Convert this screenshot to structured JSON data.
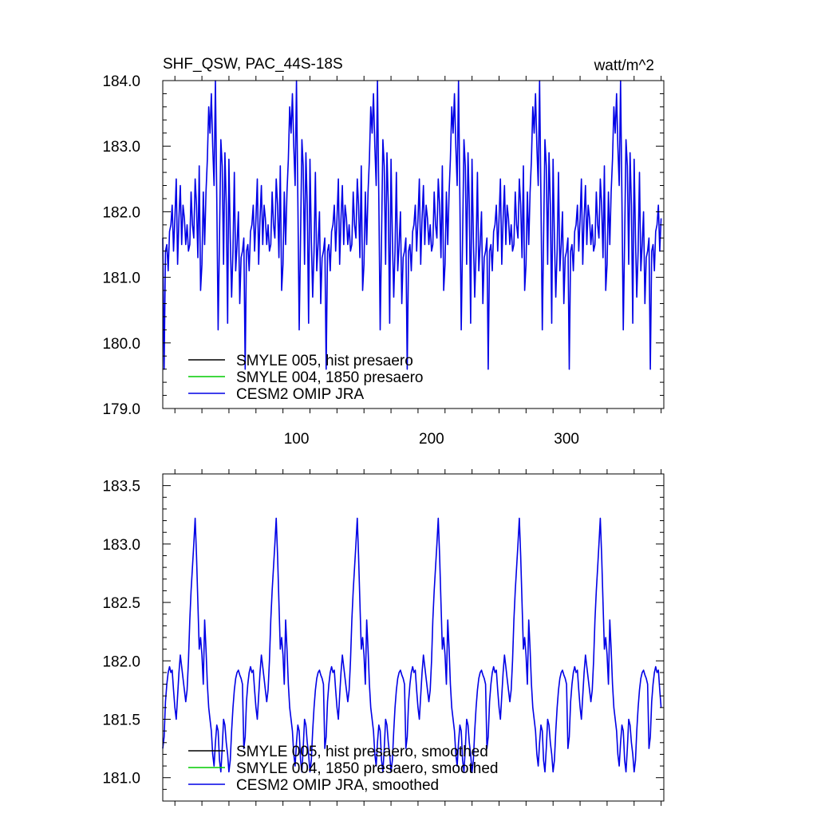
{
  "chart_data": [
    {
      "type": "line",
      "title": "SHF_QSW, PAC_44S-18S",
      "units_label": "watt/m^2",
      "xlim": [
        1,
        372
      ],
      "ylim": [
        179.0,
        184.0
      ],
      "x_ticks": [
        100,
        200,
        300
      ],
      "x_tick_labels": [
        "100",
        "200",
        "300"
      ],
      "y_ticks": [
        179.0,
        180.0,
        181.0,
        182.0,
        183.0,
        184.0
      ],
      "y_tick_labels": [
        "179.0",
        "180.0",
        "181.0",
        "182.0",
        "183.0",
        "184.0"
      ],
      "legend_position": "bottom-left",
      "cycle": {
        "period": 60,
        "first_x": 1,
        "last_x": 370,
        "y": [
          181.6,
          179.6,
          181.4,
          181.5,
          181.1,
          181.7,
          181.8,
          182.1,
          181.4,
          181.9,
          182.5,
          181.2,
          181.9,
          182.4,
          181.5,
          182.1,
          181.9,
          181.5,
          181.8,
          181.4,
          181.5,
          182.3,
          181.8,
          181.6,
          182.5,
          182.1,
          181.3,
          182.7,
          180.8,
          181.2,
          182.3,
          181.5,
          182.3,
          182.8,
          183.6,
          183.2,
          183.8,
          183.0,
          182.4,
          184.0,
          182.2,
          180.2,
          181.6,
          183.1,
          182.7,
          181.2,
          182.9,
          182.1,
          180.3,
          182.8,
          181.6,
          180.7,
          181.4,
          182.6,
          181.1,
          181.5,
          182.0,
          180.6,
          181.3,
          181.4
        ]
      },
      "series": [
        {
          "name": "SMYLE 005, hist presaero",
          "color": "#000000",
          "values": []
        },
        {
          "name": "SMYLE 004, 1850 presaero",
          "color": "#00cc00",
          "values": []
        },
        {
          "name": "CESM2 OMIP JRA",
          "color": "#0000e6",
          "values": "cycle"
        }
      ]
    },
    {
      "type": "line",
      "title": "",
      "xlim": [
        1,
        372
      ],
      "ylim": [
        180.8,
        183.6
      ],
      "x_ticks": [
        100,
        200,
        300
      ],
      "x_tick_labels": [],
      "y_ticks": [
        181.0,
        181.5,
        182.0,
        182.5,
        183.0,
        183.5
      ],
      "y_tick_labels": [
        "181.0",
        "181.5",
        "182.0",
        "182.5",
        "183.0",
        "183.5"
      ],
      "legend_position": "bottom-left",
      "cycle": {
        "period": 60,
        "first_x": 1,
        "last_x": 370,
        "y": [
          181.25,
          181.35,
          181.65,
          181.8,
          181.9,
          181.95,
          181.9,
          181.92,
          181.75,
          181.6,
          181.5,
          181.7,
          181.9,
          182.05,
          181.95,
          181.85,
          181.75,
          181.65,
          181.75,
          182.0,
          182.35,
          182.6,
          182.8,
          183.0,
          183.22,
          182.9,
          182.5,
          182.1,
          182.2,
          182.05,
          181.8,
          182.35,
          182.1,
          181.8,
          181.6,
          181.5,
          181.4,
          181.2,
          181.1,
          181.3,
          181.45,
          181.4,
          181.15,
          181.05,
          181.25,
          181.5,
          181.45,
          181.3,
          181.2,
          181.05,
          181.15,
          181.4,
          181.6,
          181.75,
          181.85,
          181.9,
          181.92,
          181.88,
          181.85,
          181.8
        ]
      },
      "series": [
        {
          "name": "SMYLE 005, hist presaero, smoothed",
          "color": "#000000",
          "values": []
        },
        {
          "name": "SMYLE 004, 1850 presaero, smoothed",
          "color": "#00cc00",
          "values": []
        },
        {
          "name": "CESM2 OMIP JRA, smoothed",
          "color": "#0000e6",
          "values": "cycle"
        }
      ]
    }
  ]
}
